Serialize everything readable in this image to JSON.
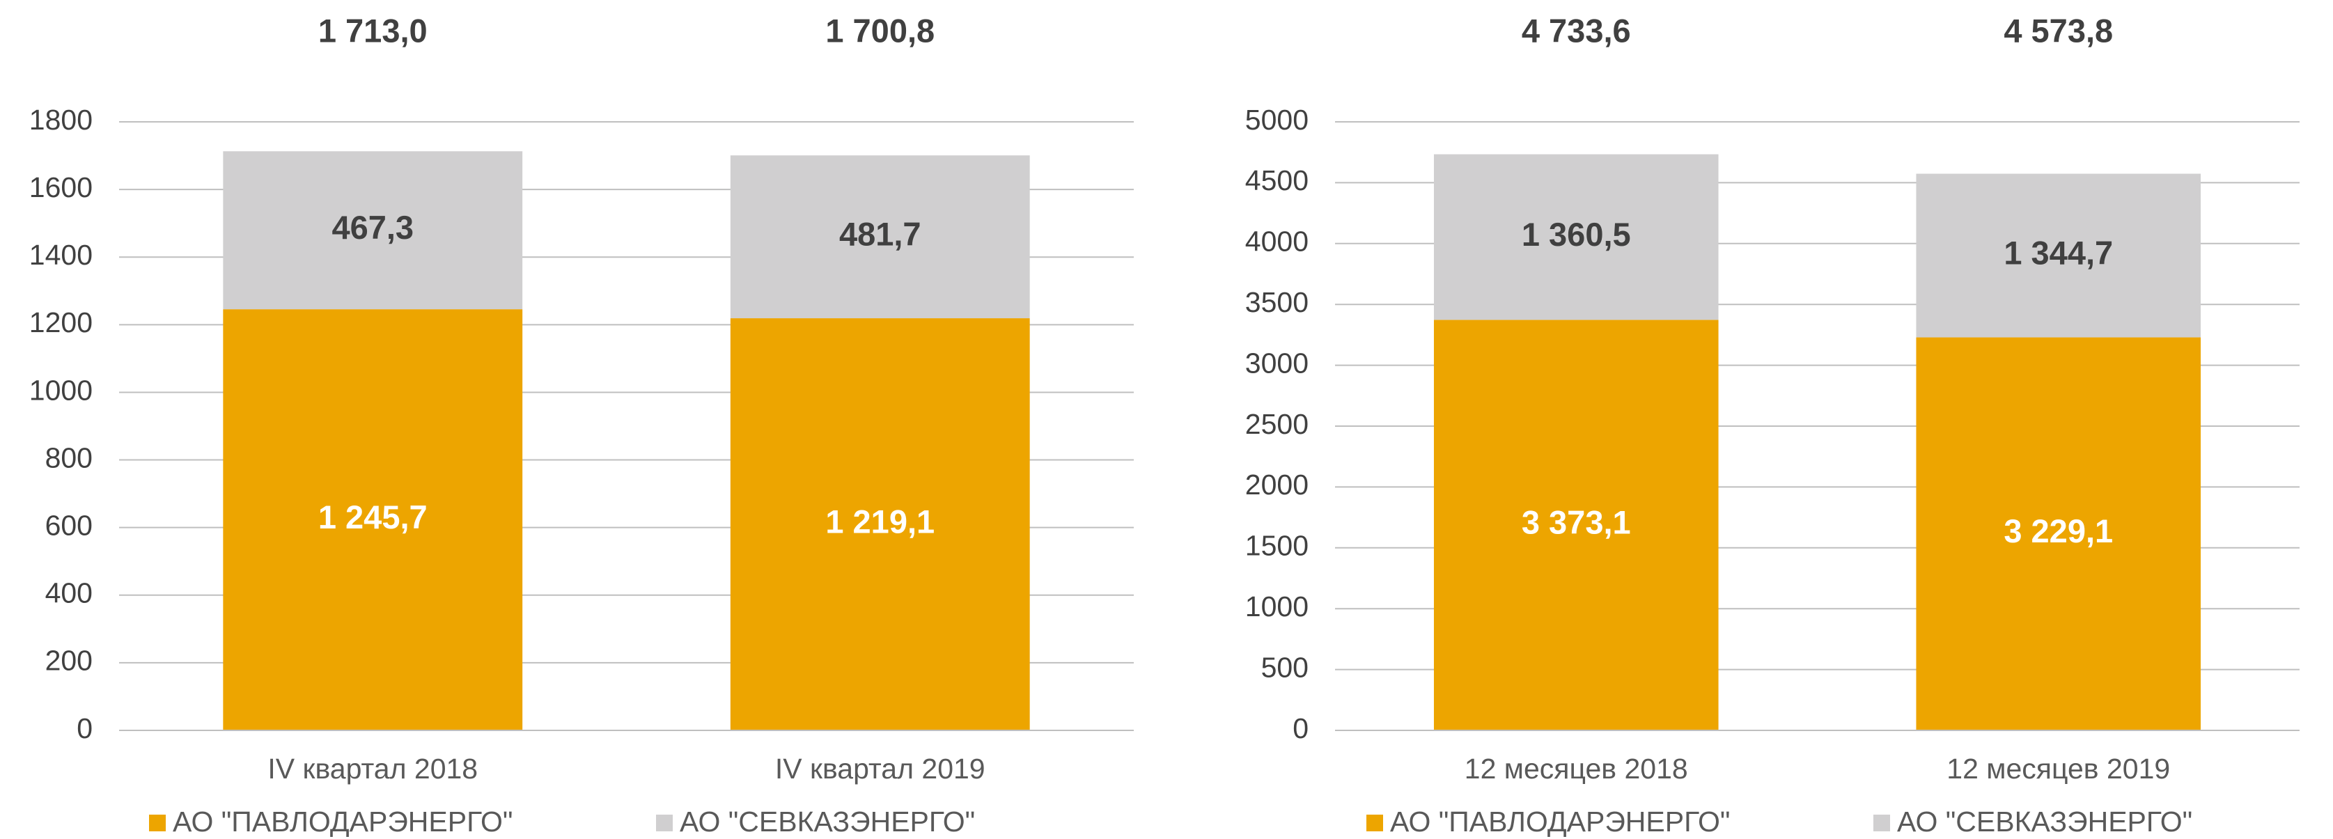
{
  "chart_data": [
    {
      "type": "stacked_bar",
      "categories": [
        "IV квартал 2018",
        "IV квартал 2019"
      ],
      "series": [
        {
          "name": "АО \"ПАВЛОДАРЭНЕРГО\"",
          "color": "#eda500",
          "values": [
            1245.7,
            1219.1
          ],
          "value_labels": [
            "1 245,7",
            "1 219,1"
          ]
        },
        {
          "name": "АО \"СЕВКАЗЭНЕРГО\"",
          "color": "#d0cfd0",
          "values": [
            467.3,
            481.7
          ],
          "value_labels": [
            "467,3",
            "481,7"
          ]
        }
      ],
      "totals": [
        1713.0,
        1700.8
      ],
      "total_labels": [
        "1 713,0",
        "1 700,8"
      ],
      "ylim": [
        0,
        1800
      ],
      "yticks": [
        0,
        200,
        400,
        600,
        800,
        1000,
        1200,
        1400,
        1600,
        1800
      ],
      "grid": true,
      "legend": "bottom"
    },
    {
      "type": "stacked_bar",
      "categories": [
        "12 месяцев 2018",
        "12 месяцев 2019"
      ],
      "series": [
        {
          "name": "АО \"ПАВЛОДАРЭНЕРГО\"",
          "color": "#eda500",
          "values": [
            3373.1,
            3229.1
          ],
          "value_labels": [
            "3 373,1",
            "3 229,1"
          ]
        },
        {
          "name": "АО \"СЕВКАЗЭНЕРГО\"",
          "color": "#d0cfd0",
          "values": [
            1360.5,
            1344.7
          ],
          "value_labels": [
            "1 360,5",
            "1 344,7"
          ]
        }
      ],
      "totals": [
        4733.6,
        4573.8
      ],
      "total_labels": [
        "4 733,6",
        "4 573,8"
      ],
      "ylim": [
        0,
        5000
      ],
      "yticks": [
        0,
        500,
        1000,
        1500,
        2000,
        2500,
        3000,
        3500,
        4000,
        4500,
        5000
      ],
      "grid": true,
      "legend": "bottom"
    }
  ]
}
